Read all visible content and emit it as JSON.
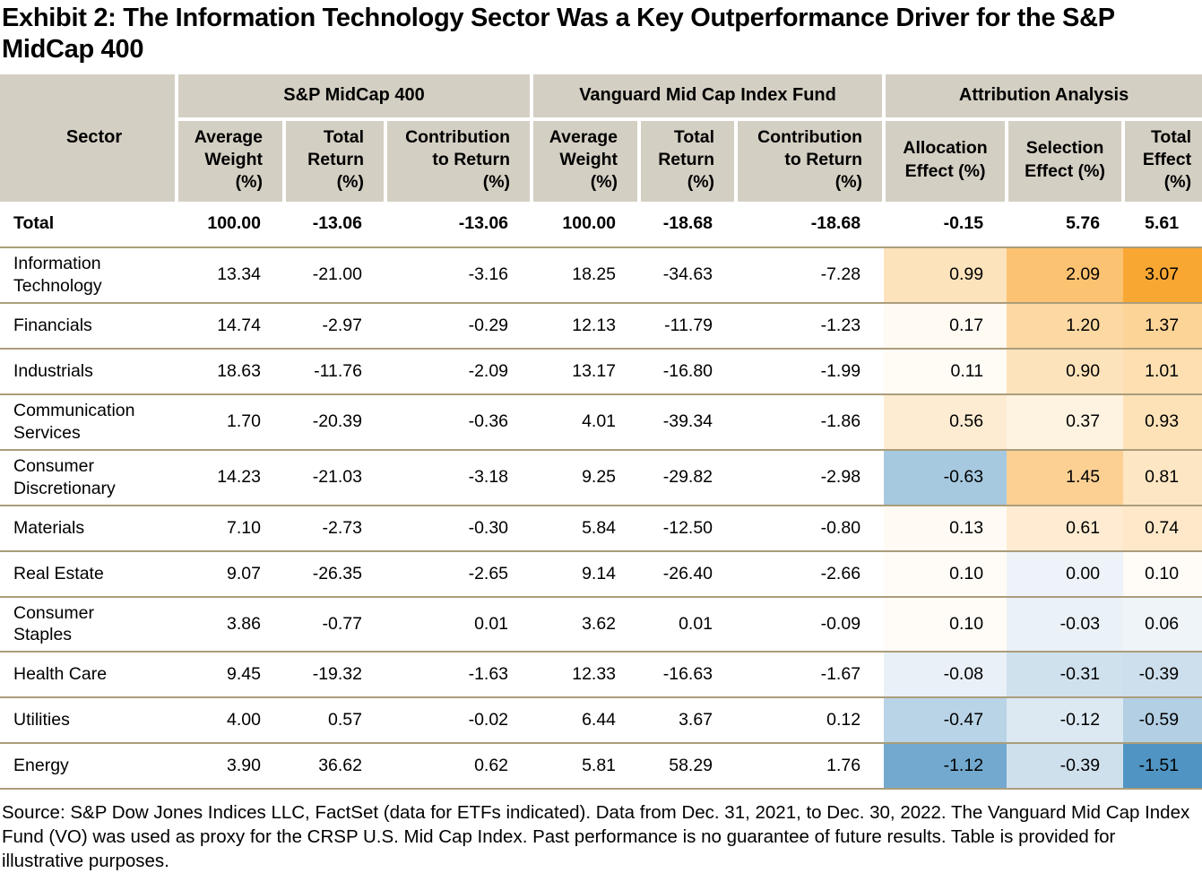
{
  "title": "Exhibit 2: The Information Technology Sector Was a Key Outperformance Driver for the S&P MidCap 400",
  "colors": {
    "header_bg": "#d4cfc3",
    "row_border": "#ab9d7b",
    "positive_max": "#f9a733",
    "negative_max": "#4f94c2"
  },
  "table": {
    "sector_header": "Sector",
    "groups": [
      {
        "label": "S&P MidCap 400"
      },
      {
        "label": "Vanguard Mid Cap Index Fund"
      },
      {
        "label": "Attribution Analysis"
      }
    ],
    "columns": [
      "Average\nWeight\n(%)",
      "Total\nReturn\n(%)",
      "Contribution\nto Return\n(%)",
      "Average\nWeight\n(%)",
      "Total\nReturn\n(%)",
      "Contribution\nto Return\n(%)",
      "Allocation\nEffect (%)",
      "Selection\nEffect (%)",
      "Total\nEffect\n(%)"
    ],
    "total_row": {
      "sector": "Total",
      "values": [
        "100.00",
        "-13.06",
        "-13.06",
        "100.00",
        "-18.68",
        "-18.68",
        "-0.15",
        "5.76",
        "5.61"
      ]
    },
    "rows": [
      {
        "sector": "Information Technology",
        "values": [
          "13.34",
          "-21.00",
          "-3.16",
          "18.25",
          "-34.63",
          "-7.28",
          "0.99",
          "2.09",
          "3.07"
        ],
        "attr_colors": [
          "#fde3bc",
          "#fbc271",
          "#f9a733"
        ]
      },
      {
        "sector": "Financials",
        "values": [
          "14.74",
          "-2.97",
          "-0.29",
          "12.13",
          "-11.79",
          "-1.23",
          "0.17",
          "1.20",
          "1.37"
        ],
        "attr_colors": [
          "#fffaf2",
          "#fcd8a2",
          "#fcd498"
        ]
      },
      {
        "sector": "Industrials",
        "values": [
          "18.63",
          "-11.76",
          "-2.09",
          "13.17",
          "-16.80",
          "-1.99",
          "0.11",
          "0.90",
          "1.01"
        ],
        "attr_colors": [
          "#fffbf5",
          "#fde3bb",
          "#fddfb2"
        ]
      },
      {
        "sector": "Communication Services",
        "values": [
          "1.70",
          "-20.39",
          "-0.36",
          "4.01",
          "-39.34",
          "-1.86",
          "0.56",
          "0.37",
          "0.93"
        ],
        "attr_colors": [
          "#feecd2",
          "#fef3e1",
          "#fde2b8"
        ]
      },
      {
        "sector": "Consumer Discretionary",
        "values": [
          "14.23",
          "-21.03",
          "-3.18",
          "9.25",
          "-29.82",
          "-2.98",
          "-0.63",
          "1.45",
          "0.81"
        ],
        "attr_colors": [
          "#a6c9e0",
          "#fcd093",
          "#fde6c3"
        ]
      },
      {
        "sector": "Materials",
        "values": [
          "7.10",
          "-2.73",
          "-0.30",
          "5.84",
          "-12.50",
          "-0.80",
          "0.13",
          "0.61",
          "0.74"
        ],
        "attr_colors": [
          "#fffaf3",
          "#feebd2",
          "#fee8c9"
        ]
      },
      {
        "sector": "Real Estate",
        "values": [
          "9.07",
          "-26.35",
          "-2.65",
          "9.14",
          "-26.40",
          "-2.66",
          "0.10",
          "0.00",
          "0.10"
        ],
        "attr_colors": [
          "#fffbf6",
          "#edf3f8",
          "#fffbf6"
        ]
      },
      {
        "sector": "Consumer Staples",
        "values": [
          "3.86",
          "-0.77",
          "0.01",
          "3.62",
          "0.01",
          "-0.09",
          "0.10",
          "-0.03",
          "0.06"
        ],
        "attr_colors": [
          "#fffbf6",
          "#eaf1f7",
          "#eff4f9"
        ]
      },
      {
        "sector": "Health Care",
        "values": [
          "9.45",
          "-19.32",
          "-1.63",
          "12.33",
          "-16.63",
          "-1.67",
          "-0.08",
          "-0.31",
          "-0.39"
        ],
        "attr_colors": [
          "#e9f0f7",
          "#d0e1ee",
          "#cddfec"
        ]
      },
      {
        "sector": "Utilities",
        "values": [
          "4.00",
          "0.57",
          "-0.02",
          "6.44",
          "3.67",
          "0.12",
          "-0.47",
          "-0.12",
          "-0.59"
        ],
        "attr_colors": [
          "#bad4e7",
          "#dce9f2",
          "#b3cfe4"
        ]
      },
      {
        "sector": "Energy",
        "values": [
          "3.90",
          "36.62",
          "0.62",
          "5.81",
          "58.29",
          "1.76",
          "-1.12",
          "-0.39",
          "-1.51"
        ],
        "attr_colors": [
          "#73a9ce",
          "#cfe0ed",
          "#4f94c2"
        ]
      }
    ]
  },
  "footer": "Source: S&P Dow Jones Indices LLC, FactSet (data for ETFs indicated). Data from Dec. 31, 2021, to Dec. 30, 2022. The Vanguard Mid Cap Index Fund (VO) was used as proxy for the CRSP U.S. Mid Cap Index. Past performance is no guarantee of future results. Table is provided for illustrative purposes."
}
